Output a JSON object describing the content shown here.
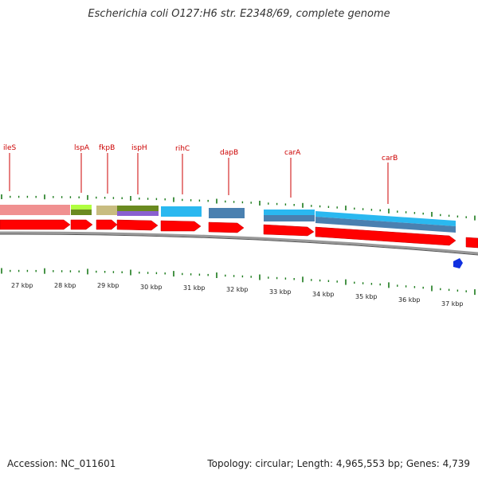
{
  "title": "Escherichia coli O127:H6 str. E2348/69, complete genome",
  "footer": {
    "accession": "Accession: NC_011601",
    "summary": "Topology: circular; Length: 4,965,553 bp; Genes: 4,739"
  },
  "colors": {
    "gene_label": "#cc0000",
    "cds_arrow": "#ff0000",
    "tick": "#1a7a1a",
    "backbone": "#888888"
  },
  "gene_labels": [
    "ileS",
    "lspA",
    "fkpB",
    "ispH",
    "rihC",
    "dapB",
    "carA",
    "carB"
  ],
  "scale_labels": [
    "27 kbp",
    "28 kbp",
    "29 kbp",
    "30 kbp",
    "31 kbp",
    "32 kbp",
    "33 kbp",
    "34 kbp",
    "35 kbp",
    "36 kbp",
    "37 kbp"
  ]
}
